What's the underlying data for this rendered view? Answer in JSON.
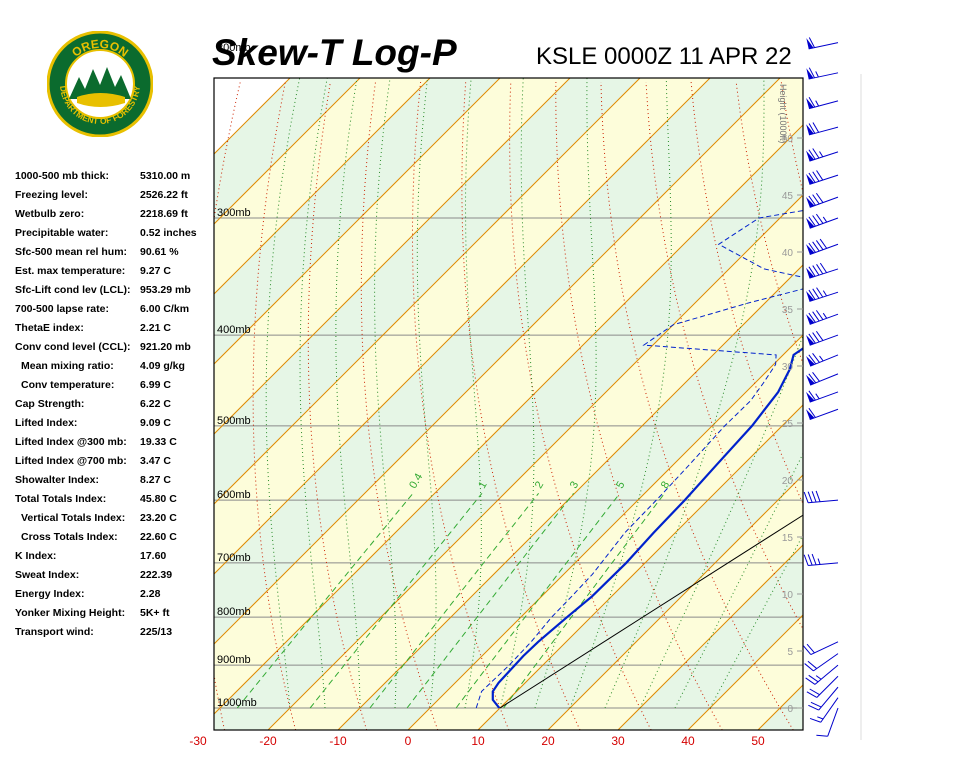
{
  "title": "Skew-T Log-P",
  "station": "KSLE 0000Z 11 APR 22",
  "logo": {
    "text_top": "OREGON",
    "text_bottom": "DEPARTMENT OF FORESTRY",
    "ring_color": "#0b6b2e",
    "gold_color": "#e8c000"
  },
  "stats": [
    {
      "label": "1000-500 mb thick:",
      "value": "5310.00 m",
      "indent": false
    },
    {
      "label": "Freezing level:",
      "value": "2526.22 ft",
      "indent": false
    },
    {
      "label": "Wetbulb zero:",
      "value": "2218.69 ft",
      "indent": false
    },
    {
      "label": "Precipitable water:",
      "value": "0.52 inches",
      "indent": false
    },
    {
      "label": "Sfc-500 mean rel hum:",
      "value": "90.61 %",
      "indent": false
    },
    {
      "label": "Est. max temperature:",
      "value": "9.27 C",
      "indent": false
    },
    {
      "label": "Sfc-Lift cond lev (LCL):",
      "value": "953.29 mb",
      "indent": false
    },
    {
      "label": "700-500 lapse rate:",
      "value": "6.00 C/km",
      "indent": false
    },
    {
      "label": "ThetaE index:",
      "value": "2.21 C",
      "indent": false
    },
    {
      "label": "Conv cond level (CCL):",
      "value": "921.20 mb",
      "indent": false
    },
    {
      "label": "Mean mixing ratio:",
      "value": "4.09 g/kg",
      "indent": true
    },
    {
      "label": "Conv temperature:",
      "value": "6.99 C",
      "indent": true
    },
    {
      "label": "Cap Strength:",
      "value": "6.22 C",
      "indent": false
    },
    {
      "label": "Lifted Index:",
      "value": "9.09 C",
      "indent": false
    },
    {
      "label": "Lifted Index @300 mb:",
      "value": "19.33 C",
      "indent": false
    },
    {
      "label": "Lifted Index @700 mb:",
      "value": "3.47 C",
      "indent": false
    },
    {
      "label": "Showalter Index:",
      "value": "8.27 C",
      "indent": false
    },
    {
      "label": "Total Totals Index:",
      "value": "45.80 C",
      "indent": false
    },
    {
      "label": "Vertical Totals Index:",
      "value": "23.20 C",
      "indent": true
    },
    {
      "label": "Cross Totals Index:",
      "value": "22.60 C",
      "indent": true
    },
    {
      "label": "K Index:",
      "value": "17.60",
      "indent": false
    },
    {
      "label": "Sweat Index:",
      "value": "222.39",
      "indent": false
    },
    {
      "label": "Energy Index:",
      "value": "2.28",
      "indent": false
    },
    {
      "label": "Yonker Mixing Height:",
      "value": "5K+ ft",
      "indent": false
    },
    {
      "label": "Transport wind:",
      "value": "225/13",
      "indent": false
    }
  ],
  "chart_data": {
    "type": "line",
    "x_ticks": [
      -30,
      -20,
      -10,
      0,
      10,
      20,
      30,
      40,
      50
    ],
    "xlim": [
      -30,
      50
    ],
    "pressure_levels": [
      {
        "p": 200,
        "label": "200mb"
      },
      {
        "p": 300,
        "label": "300mb"
      },
      {
        "p": 400,
        "label": "400mb"
      },
      {
        "p": 500,
        "label": "500mb"
      },
      {
        "p": 600,
        "label": "600mb"
      },
      {
        "p": 700,
        "label": "700mb"
      },
      {
        "p": 800,
        "label": "800mb"
      },
      {
        "p": 900,
        "label": "900mb"
      },
      {
        "p": 1000,
        "label": "1000mb"
      }
    ],
    "height_axis_label": "Height (1000ft)",
    "height_ticks": [
      0,
      5,
      10,
      15,
      20,
      25,
      30,
      35,
      40,
      45,
      50
    ],
    "mixing_ratio_labels": [
      "0.4",
      "1",
      "2",
      "3",
      "5",
      "8"
    ],
    "temperature_profile": [
      [
        1000,
        9.9
      ],
      [
        980,
        7.8
      ],
      [
        960,
        6.6
      ],
      [
        940,
        6.2
      ],
      [
        920,
        6.1
      ],
      [
        880,
        5.9
      ],
      [
        850,
        6.0
      ],
      [
        800,
        6.6
      ],
      [
        760,
        7.2
      ],
      [
        700,
        7.3
      ],
      [
        650,
        6.9
      ],
      [
        600,
        6.7
      ],
      [
        550,
        6.2
      ],
      [
        500,
        5.7
      ],
      [
        460,
        4.6
      ],
      [
        435,
        3.0
      ],
      [
        420,
        1.5
      ],
      [
        400,
        2.8
      ],
      [
        370,
        4.0
      ],
      [
        350,
        3.8
      ],
      [
        330,
        3.8
      ],
      [
        300,
        3.9
      ],
      [
        270,
        3.5
      ],
      [
        250,
        3.8
      ],
      [
        240,
        5.6
      ],
      [
        230,
        10.0
      ],
      [
        225,
        14.7
      ],
      [
        200,
        18.7
      ],
      [
        170,
        25.0
      ],
      [
        145,
        32.5
      ],
      [
        130,
        35.3
      ]
    ],
    "dewpoint_profile": [
      [
        1000,
        6.6
      ],
      [
        960,
        5.0
      ],
      [
        900,
        5.2
      ],
      [
        850,
        5.0
      ],
      [
        800,
        4.4
      ],
      [
        760,
        4.3
      ],
      [
        720,
        4.1
      ],
      [
        650,
        2.8
      ],
      [
        590,
        2.6
      ],
      [
        550,
        2.3
      ],
      [
        500,
        1.8
      ],
      [
        470,
        1.9
      ],
      [
        450,
        1.2
      ],
      [
        430,
        0.3
      ],
      [
        420,
        -1.0
      ],
      [
        410,
        -21.3
      ],
      [
        390,
        -20.0
      ],
      [
        370,
        -12.5
      ],
      [
        355,
        -5.6
      ],
      [
        350,
        -5.5
      ],
      [
        340,
        -15.0
      ],
      [
        320,
        -25.0
      ],
      [
        300,
        -23.0
      ],
      [
        290,
        -13.3
      ],
      [
        270,
        -12.0
      ],
      [
        260,
        -9.3
      ],
      [
        250,
        -14.0
      ],
      [
        230,
        -20.2
      ],
      [
        215,
        -18.9
      ],
      [
        200,
        -15.0
      ],
      [
        170,
        -9.2
      ],
      [
        150,
        -3.7
      ],
      [
        135,
        0.0
      ]
    ],
    "parcel_line": [
      [
        1000,
        10.0
      ],
      [
        300,
        50.0
      ]
    ],
    "wind_barbs": [
      {
        "p": 1000,
        "dir": 200,
        "spd": 8
      },
      {
        "p": 975,
        "dir": 215,
        "spd": 13
      },
      {
        "p": 950,
        "dir": 220,
        "spd": 18
      },
      {
        "p": 925,
        "dir": 225,
        "spd": 22
      },
      {
        "p": 900,
        "dir": 230,
        "spd": 25
      },
      {
        "p": 875,
        "dir": 235,
        "spd": 22
      },
      {
        "p": 850,
        "dir": 245,
        "spd": 20
      },
      {
        "p": 700,
        "dir": 265,
        "spd": 35
      },
      {
        "p": 600,
        "dir": 265,
        "spd": 40
      },
      {
        "p": 480,
        "dir": 250,
        "spd": 60
      },
      {
        "p": 460,
        "dir": 250,
        "spd": 65
      },
      {
        "p": 440,
        "dir": 248,
        "spd": 70
      },
      {
        "p": 420,
        "dir": 248,
        "spd": 75
      },
      {
        "p": 400,
        "dir": 250,
        "spd": 80
      },
      {
        "p": 380,
        "dir": 250,
        "spd": 85
      },
      {
        "p": 360,
        "dir": 252,
        "spd": 85
      },
      {
        "p": 340,
        "dir": 252,
        "spd": 90
      },
      {
        "p": 320,
        "dir": 250,
        "spd": 90
      },
      {
        "p": 300,
        "dir": 250,
        "spd": 85
      },
      {
        "p": 285,
        "dir": 250,
        "spd": 80
      },
      {
        "p": 270,
        "dir": 252,
        "spd": 80
      },
      {
        "p": 255,
        "dir": 252,
        "spd": 75
      },
      {
        "p": 240,
        "dir": 255,
        "spd": 70
      },
      {
        "p": 225,
        "dir": 255,
        "spd": 65
      },
      {
        "p": 210,
        "dir": 258,
        "spd": 65
      },
      {
        "p": 195,
        "dir": 258,
        "spd": 60
      },
      {
        "p": 160,
        "dir": 255,
        "spd": 45
      }
    ],
    "colors": {
      "temperature": "#0022cc",
      "dewpoint": "#0022cc",
      "isotherm": "#e08a00",
      "dry_adiabat": "#cc2200",
      "moist_adiabat": "#2a8c2a",
      "mixing_ratio": "#33aa33",
      "band_yellow": "#fdfdda",
      "band_green": "#e6f6e6",
      "x_tick_labels": "#d40000",
      "wind_barb": "#0000cc"
    }
  }
}
